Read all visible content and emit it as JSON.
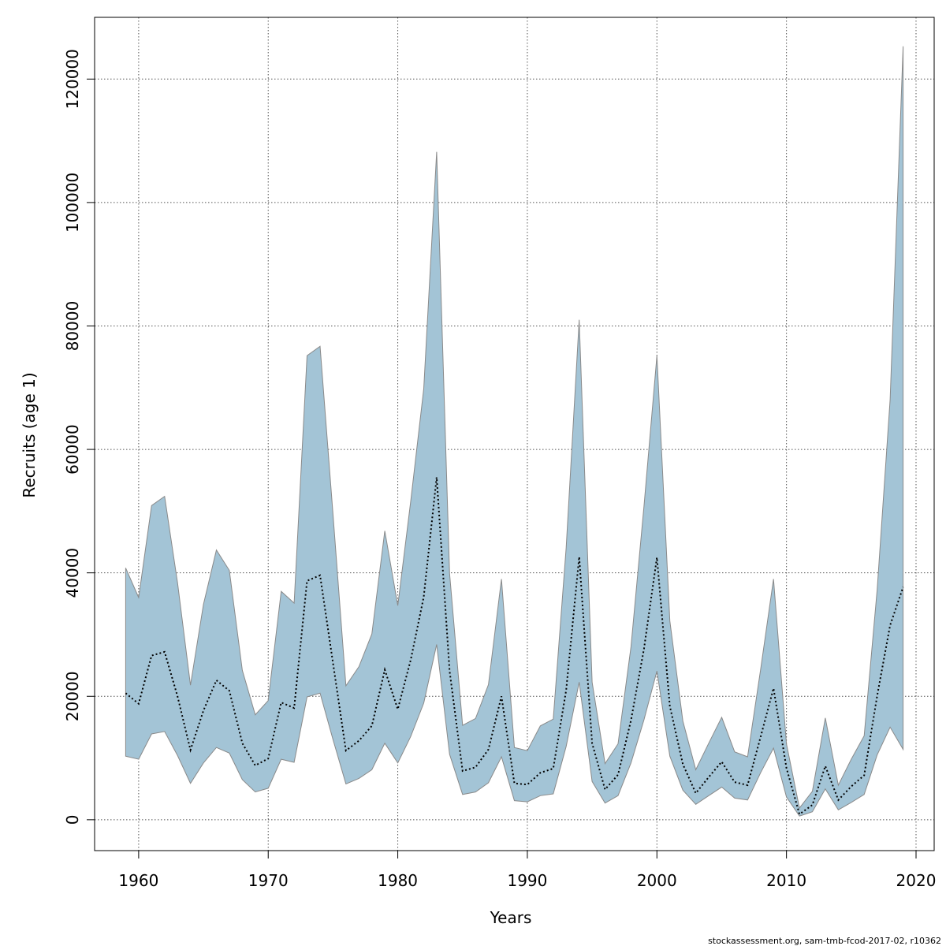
{
  "chart_data": {
    "type": "area",
    "title": "",
    "xlabel": "Years",
    "ylabel": "Recruits (age 1)",
    "xlim": [
      1956.6,
      2021.4
    ],
    "ylim": [
      -5000,
      130000
    ],
    "x_ticks": [
      1960,
      1970,
      1980,
      1990,
      2000,
      2010,
      2020
    ],
    "y_ticks": [
      0,
      20000,
      40000,
      60000,
      80000,
      100000,
      120000
    ],
    "grid": true,
    "legend": "none",
    "band_color": "#a3c4d6",
    "band_edge_color": "#8a8a8a",
    "line_color": "#000000",
    "x": [
      1959,
      1960,
      1961,
      1962,
      1963,
      1964,
      1965,
      1966,
      1967,
      1968,
      1969,
      1970,
      1971,
      1972,
      1973,
      1974,
      1975,
      1976,
      1977,
      1978,
      1979,
      1980,
      1981,
      1982,
      1983,
      1984,
      1985,
      1986,
      1987,
      1988,
      1989,
      1990,
      1991,
      1992,
      1993,
      1994,
      1995,
      1996,
      1997,
      1998,
      1999,
      2000,
      2001,
      2002,
      2003,
      2004,
      2005,
      2006,
      2007,
      2008,
      2009,
      2010,
      2011,
      2012,
      2013,
      2014,
      2015,
      2016,
      2017,
      2018,
      2019
    ],
    "series": [
      {
        "values": [
          20500,
          18800,
          26600,
          27200,
          20000,
          11300,
          17700,
          22600,
          20900,
          12400,
          8800,
          9900,
          19000,
          18100,
          38700,
          39600,
          25400,
          11200,
          12800,
          15200,
          24300,
          17900,
          25900,
          36100,
          55500,
          24100,
          7900,
          8500,
          11400,
          20000,
          5900,
          5700,
          7600,
          8300,
          21000,
          42600,
          12400,
          4900,
          7300,
          16100,
          27700,
          42500,
          18400,
          9000,
          4300,
          6900,
          9400,
          6100,
          5600,
          13400,
          21300,
          8400,
          900,
          2400,
          8700,
          3200,
          5400,
          7200,
          20100,
          31500,
          37700
        ]
      },
      {
        "values": [
          10300,
          9800,
          13900,
          14300,
          10400,
          5900,
          9200,
          11700,
          10800,
          6500,
          4500,
          5100,
          9800,
          9300,
          19900,
          20500,
          13000,
          5800,
          6700,
          8100,
          12400,
          9200,
          13500,
          18900,
          28400,
          10600,
          4100,
          4500,
          6000,
          10200,
          3100,
          2900,
          3900,
          4200,
          11900,
          22300,
          6200,
          2700,
          3900,
          9200,
          16200,
          24100,
          10300,
          4800,
          2500,
          3900,
          5300,
          3500,
          3200,
          7600,
          11600,
          3700,
          600,
          1300,
          5000,
          1600,
          2800,
          4100,
          10500,
          15000,
          11400
        ]
      },
      {
        "values": [
          40800,
          36000,
          50900,
          52400,
          38400,
          21800,
          34900,
          43700,
          40400,
          24200,
          17000,
          19300,
          37000,
          35100,
          75200,
          76700,
          49500,
          21700,
          24800,
          30100,
          46800,
          34700,
          51600,
          69800,
          108200,
          39900,
          15300,
          16400,
          21900,
          39000,
          11700,
          11200,
          15200,
          16300,
          44100,
          81000,
          22300,
          9100,
          12300,
          28000,
          50800,
          75200,
          32200,
          16000,
          8100,
          12400,
          16600,
          11000,
          10200,
          24300,
          39000,
          12300,
          1900,
          4600,
          16500,
          5600,
          9800,
          13600,
          37300,
          68000,
          125300
        ]
      }
    ]
  },
  "footer": {
    "text": "stockassessment.org, sam-tmb-fcod-2017-02, r10362"
  }
}
